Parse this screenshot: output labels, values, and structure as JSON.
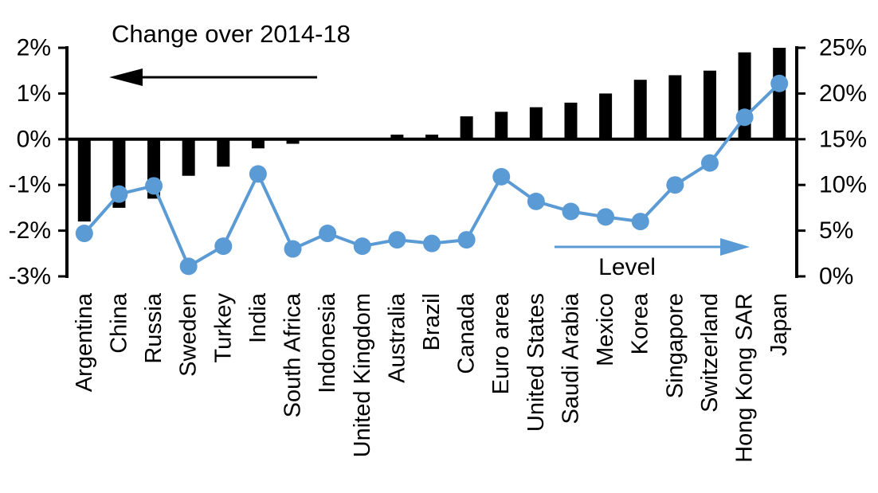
{
  "chart_data": {
    "type": "bar",
    "combo": "bar+line",
    "categories": [
      "Argentina",
      "China",
      "Russia",
      "Sweden",
      "Turkey",
      "India",
      "South Africa",
      "Indonesia",
      "United Kingdom",
      "Australia",
      "Brazil",
      "Canada",
      "Euro area",
      "United States",
      "Saudi Arabia",
      "Mexico",
      "Korea",
      "Singapore",
      "Switzerland",
      "Hong Kong SAR",
      "Japan"
    ],
    "series": [
      {
        "name": "Change over 2014-18",
        "type": "bar",
        "axis": "left",
        "color": "#000000",
        "values": [
          -1.8,
          -1.5,
          -1.3,
          -0.8,
          -0.6,
          -0.2,
          -0.1,
          0,
          0,
          0.1,
          0.1,
          0.5,
          0.6,
          0.7,
          0.8,
          1.0,
          1.3,
          1.4,
          1.5,
          1.9,
          2.0
        ]
      },
      {
        "name": "Level",
        "type": "line",
        "axis": "right",
        "color": "#5B9BD5",
        "values": [
          4.7,
          9.0,
          9.9,
          1.1,
          3.3,
          11.2,
          3.0,
          4.7,
          3.3,
          4.0,
          3.6,
          4.0,
          10.9,
          8.2,
          7.1,
          6.5,
          6.0,
          10.0,
          12.4,
          17.4,
          21.1
        ]
      }
    ],
    "left_axis": {
      "tick_labels": [
        "2%",
        "1%",
        "0%",
        "-1%",
        "-2%",
        "-3%"
      ],
      "tick_values": [
        2,
        1,
        0,
        -1,
        -2,
        -3
      ],
      "min": -3,
      "max": 2
    },
    "right_axis": {
      "tick_labels": [
        "25%",
        "20%",
        "15%",
        "10%",
        "5%",
        "0%"
      ],
      "tick_values": [
        25,
        20,
        15,
        10,
        5,
        0
      ],
      "min": 0,
      "max": 25
    },
    "legend_position": "annotations-inside-plot",
    "grid": false
  }
}
